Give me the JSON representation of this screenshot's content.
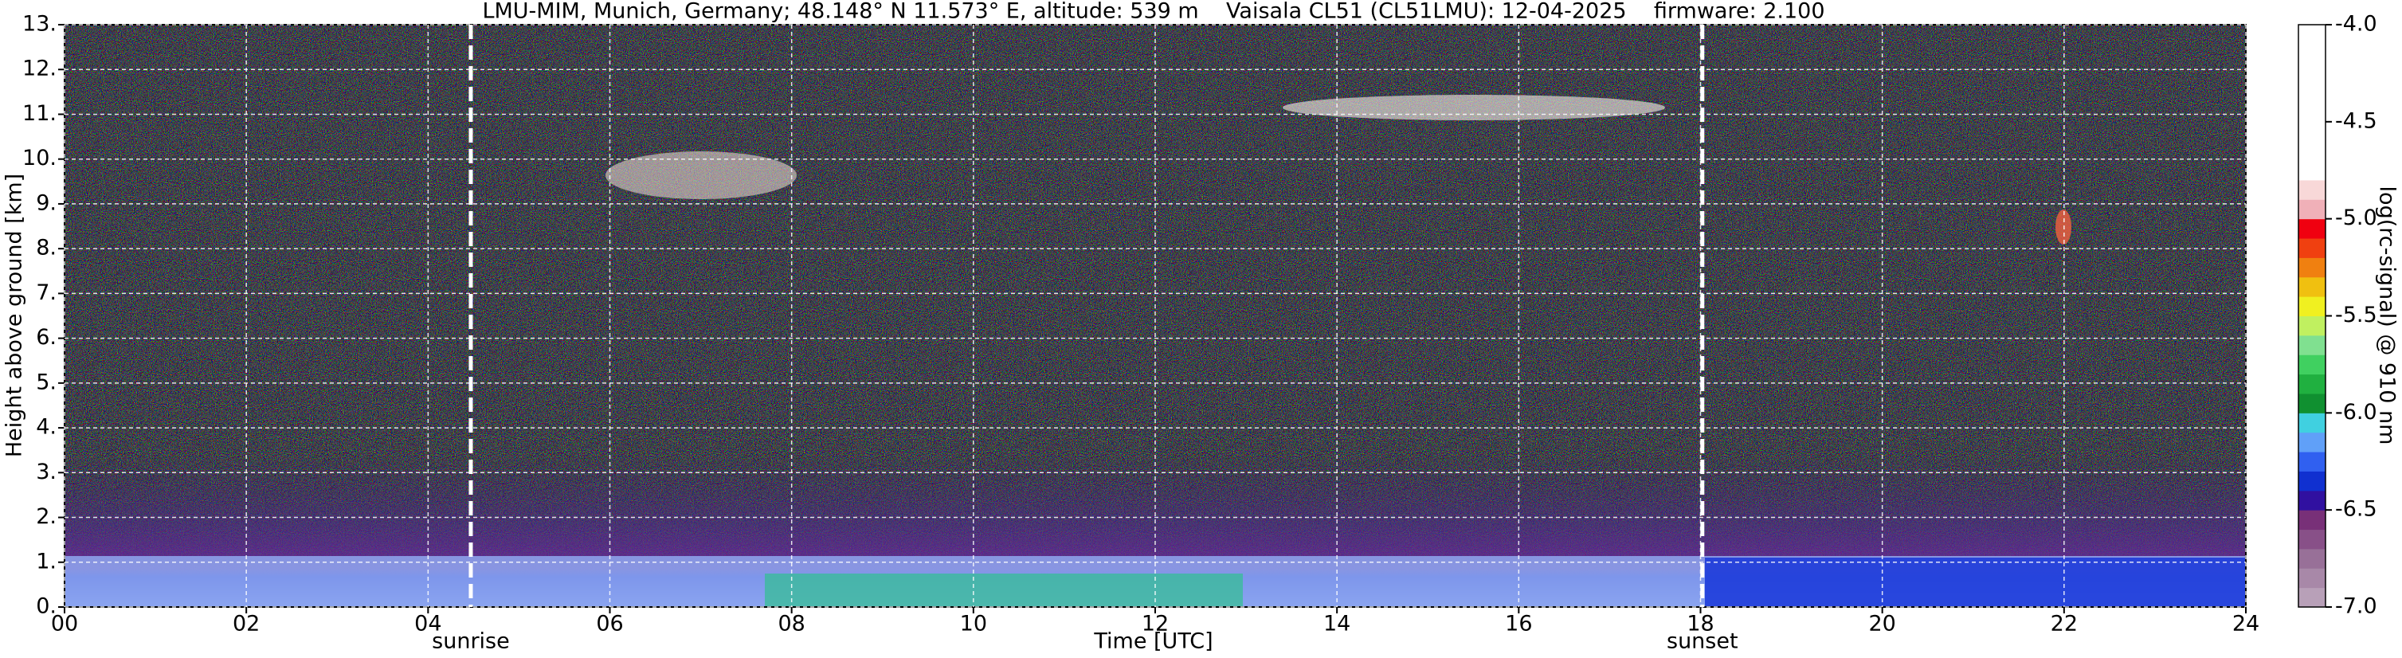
{
  "chart_data": {
    "type": "heatmap",
    "title": "LMU-MIM, Munich, Germany; 48.148° N 11.573° E, altitude: 539 m    Vaisala CL51 (CL51LMU): 12-04-2025    firmware: 2.100",
    "xlabel": "Time [UTC]",
    "ylabel": "Height above ground [km]",
    "colorbar_label": "log(rc-signal) @ 910 nm",
    "xlim": [
      0,
      24
    ],
    "xticks": [
      {
        "value": 0,
        "label": "00"
      },
      {
        "value": 2,
        "label": "02"
      },
      {
        "value": 4,
        "label": "04"
      },
      {
        "value": 6,
        "label": "06"
      },
      {
        "value": 8,
        "label": "08"
      },
      10,
      12,
      14,
      16,
      18,
      20,
      22,
      24
    ],
    "ylim": [
      0,
      13
    ],
    "yticks": [
      {
        "value": 0,
        "label": "0."
      },
      {
        "value": 1,
        "label": "1."
      },
      {
        "value": 2,
        "label": "2."
      },
      {
        "value": 3,
        "label": "3."
      },
      {
        "value": 4,
        "label": "4."
      },
      {
        "value": 5,
        "label": "5."
      },
      {
        "value": 6,
        "label": "6."
      },
      {
        "value": 7,
        "label": "7."
      },
      {
        "value": 8,
        "label": "8."
      },
      {
        "value": 9,
        "label": "9."
      },
      {
        "value": 10,
        "label": "10."
      },
      {
        "value": 11,
        "label": "11."
      },
      {
        "value": 12,
        "label": "12."
      },
      {
        "value": 13,
        "label": "13."
      }
    ],
    "clim": [
      -7,
      -4
    ],
    "cticks": [
      {
        "value": -4,
        "label": "-4.0"
      },
      {
        "value": -4.5,
        "label": "-4.5"
      },
      {
        "value": -5,
        "label": "-5.0"
      },
      {
        "value": -5.5,
        "label": "-5.5"
      },
      {
        "value": -6,
        "label": "-6.0"
      },
      {
        "value": -6.5,
        "label": "-6.5"
      },
      {
        "value": -7,
        "label": "-7.0"
      }
    ],
    "colormap": [
      "#b8a0b8",
      "#a888a8",
      "#987098",
      "#885088",
      "#783078",
      "#3010a0",
      "#1030d0",
      "#3060f0",
      "#60a0f8",
      "#40d0e0",
      "#109030",
      "#20b040",
      "#40d060",
      "#80e090",
      "#c0f060",
      "#f0f020",
      "#f0c010",
      "#f08010",
      "#f04010",
      "#f00010",
      "#f0b0b8",
      "#f8d8d8",
      "#ffffff",
      "#ffffff",
      "#ffffff",
      "#ffffff",
      "#ffffff",
      "#ffffff",
      "#ffffff",
      "#ffffff"
    ],
    "grid": true,
    "annotations": [
      {
        "label": "sunrise",
        "x": 4.47
      },
      {
        "label": "sunset",
        "x": 18.02
      }
    ]
  }
}
